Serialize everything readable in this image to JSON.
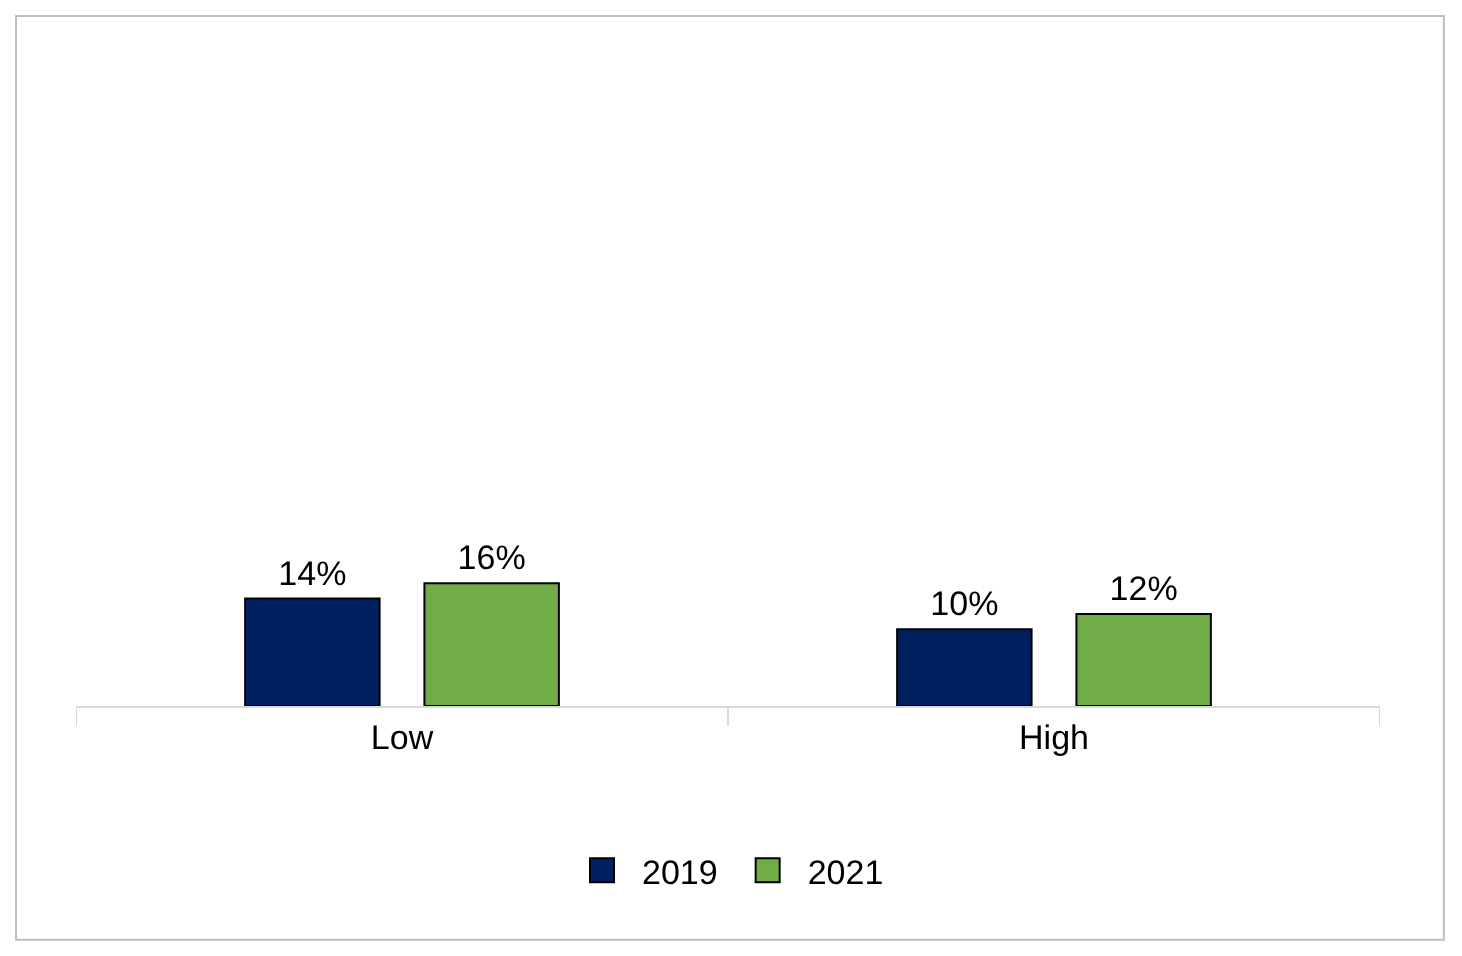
{
  "chart_data": {
    "type": "bar",
    "categories": [
      "Low",
      "High"
    ],
    "series": [
      {
        "name": "2019",
        "color": "#002060",
        "values": [
          14,
          10
        ],
        "value_labels": [
          "14%",
          "10%"
        ]
      },
      {
        "name": "2021",
        "color": "#70ad47",
        "values": [
          16,
          12
        ],
        "value_labels": [
          "16%",
          "12%"
        ]
      }
    ],
    "tick_labels": "x",
    "legend": "bottom"
  }
}
